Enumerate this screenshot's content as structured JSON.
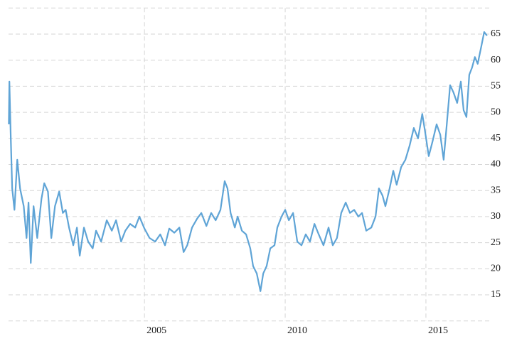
{
  "chart_data": {
    "type": "line",
    "color": "#5fa4d6",
    "grid": true,
    "xlim": [
      2000.17,
      2017.25
    ],
    "xticks": [
      2005,
      2010,
      2015
    ],
    "ylim": [
      10,
      70
    ],
    "yticks": [
      15,
      20,
      25,
      30,
      35,
      40,
      45,
      50,
      55,
      60,
      65
    ],
    "x": [
      2000.18,
      2000.2,
      2000.25,
      2000.3,
      2000.38,
      2000.48,
      2000.58,
      2000.71,
      2000.81,
      2000.88,
      2000.96,
      2001.06,
      2001.19,
      2001.34,
      2001.44,
      2001.57,
      2001.69,
      2001.82,
      2001.97,
      2002.1,
      2002.2,
      2002.32,
      2002.47,
      2002.6,
      2002.7,
      2002.85,
      2003.0,
      2003.16,
      2003.28,
      2003.46,
      2003.66,
      2003.84,
      2003.99,
      2004.17,
      2004.32,
      2004.49,
      2004.67,
      2004.82,
      2005.0,
      2005.18,
      2005.38,
      2005.56,
      2005.73,
      2005.88,
      2006.06,
      2006.24,
      2006.39,
      2006.52,
      2006.69,
      2006.87,
      2007.02,
      2007.2,
      2007.37,
      2007.53,
      2007.7,
      2007.85,
      2007.95,
      2008.06,
      2008.21,
      2008.31,
      2008.46,
      2008.61,
      2008.76,
      2008.86,
      2008.99,
      2009.12,
      2009.22,
      2009.34,
      2009.47,
      2009.62,
      2009.72,
      2009.87,
      2010.0,
      2010.13,
      2010.28,
      2010.43,
      2010.58,
      2010.73,
      2010.88,
      2011.04,
      2011.19,
      2011.36,
      2011.54,
      2011.69,
      2011.84,
      2011.99,
      2012.15,
      2012.3,
      2012.45,
      2012.6,
      2012.73,
      2012.88,
      2013.06,
      2013.21,
      2013.33,
      2013.46,
      2013.56,
      2013.71,
      2013.84,
      2013.96,
      2014.12,
      2014.27,
      2014.42,
      2014.57,
      2014.72,
      2014.87,
      2014.97,
      2015.1,
      2015.23,
      2015.38,
      2015.51,
      2015.63,
      2015.73,
      2015.86,
      2015.98,
      2016.11,
      2016.24,
      2016.34,
      2016.44,
      2016.54,
      2016.64,
      2016.74,
      2016.84,
      2016.97,
      2017.07,
      2017.17
    ],
    "values": [
      47.7,
      55.9,
      45,
      35.4,
      31.3,
      40.9,
      35.4,
      32,
      25.9,
      32.7,
      21.1,
      32,
      25.9,
      33.4,
      36.4,
      34.8,
      25.9,
      32,
      34.8,
      30.7,
      31.3,
      27.9,
      24.5,
      27.9,
      22.5,
      27.9,
      25.2,
      23.9,
      27.3,
      25.2,
      29.3,
      27.3,
      29.3,
      25.2,
      27.3,
      28.6,
      27.9,
      30,
      27.7,
      25.9,
      25.2,
      26.6,
      24.5,
      27.7,
      26.9,
      27.9,
      23.2,
      24.5,
      27.9,
      29.6,
      30.7,
      28.2,
      30.7,
      29.3,
      31.3,
      36.8,
      35.4,
      30.7,
      27.9,
      30,
      27.3,
      26.6,
      23.9,
      20.5,
      19.1,
      15.7,
      19.1,
      20.5,
      23.9,
      24.5,
      27.9,
      30,
      31.3,
      29.3,
      30.7,
      25.2,
      24.5,
      26.6,
      25.2,
      28.6,
      26.6,
      24.5,
      27.9,
      24.5,
      25.9,
      30.7,
      32.7,
      30.7,
      31.3,
      30,
      30.7,
      27.3,
      27.9,
      30,
      35.4,
      34,
      32,
      35.4,
      38.8,
      36.1,
      39.5,
      40.9,
      43.6,
      47,
      45,
      49.7,
      46.3,
      41.6,
      44.3,
      47.7,
      45.7,
      40.9,
      47,
      55.2,
      53.8,
      51.8,
      55.9,
      50.4,
      49.1,
      57.2,
      58.6,
      60.6,
      59.3,
      62.7,
      65.4,
      64.7
    ]
  }
}
